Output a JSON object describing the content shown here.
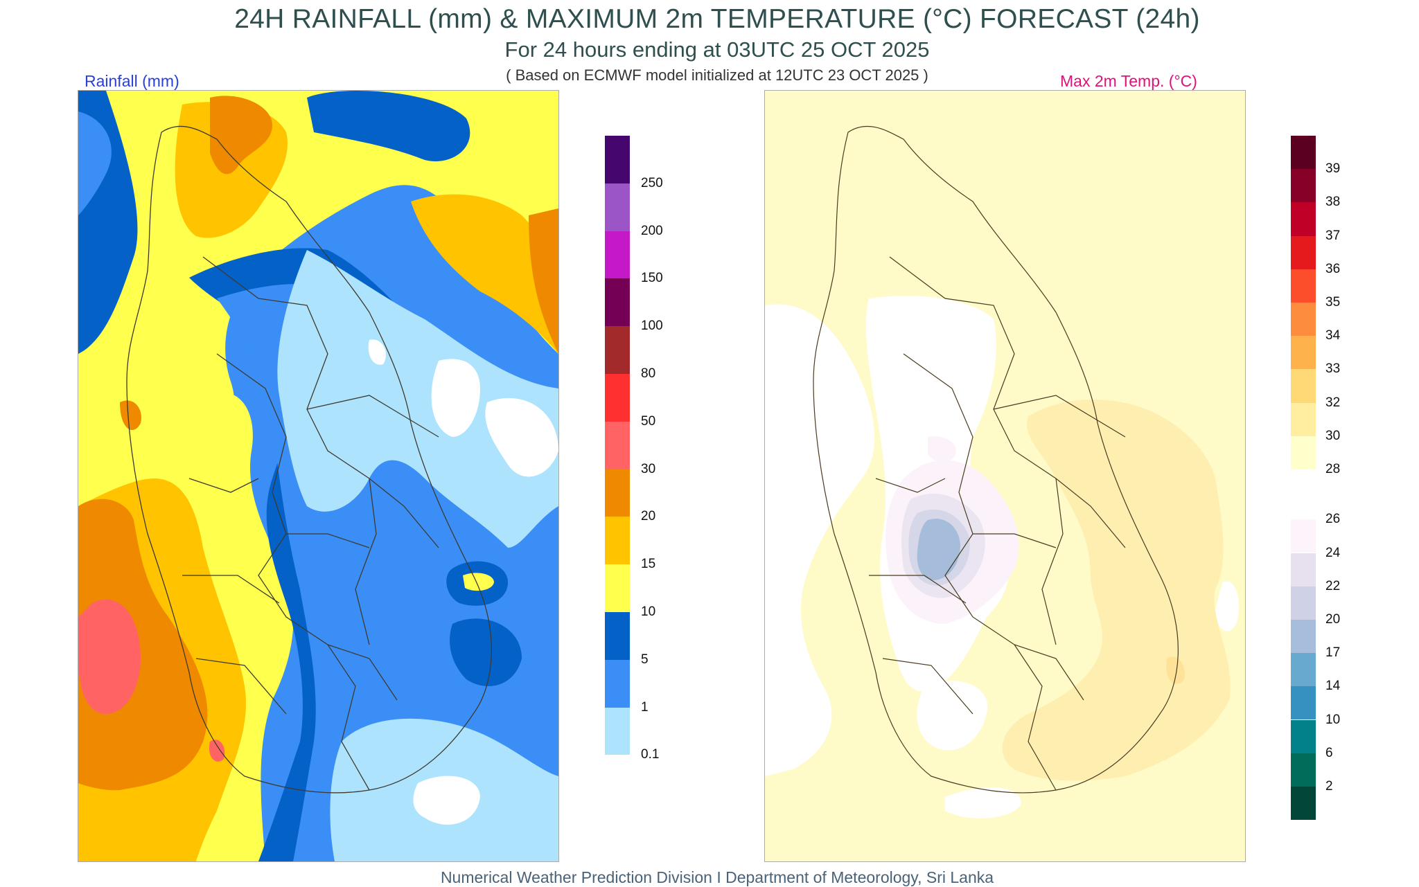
{
  "header": {
    "title": "24H RAINFALL (mm) & MAXIMUM 2m TEMPERATURE (°C) FORECAST (24h)",
    "subtitle": "For 24 hours ending at 03UTC 25 OCT 2025",
    "model_note": "( Based on ECMWF model initialized at 12UTC 23 OCT 2025 )"
  },
  "rain_panel": {
    "label": "Rainfall (mm)",
    "legend": {
      "labels": [
        "250",
        "200",
        "150",
        "100",
        "80",
        "50",
        "30",
        "20",
        "15",
        "10",
        "5",
        "1",
        "0.1"
      ],
      "colors": [
        "#45066e",
        "#9b55c6",
        "#c518c6",
        "#740055",
        "#a32a2a",
        "#ff3030",
        "#ff6363",
        "#ef8a00",
        "#ffc300",
        "#ffff4d",
        "#0461c8",
        "#3a8ef5",
        "#ade3fd"
      ]
    },
    "colors": {
      "very_light": "#ade3fd",
      "light_blue": "#3a8ef5",
      "dark_blue": "#0461c8",
      "yellow": "#ffff4d",
      "gold": "#ffc300",
      "orange": "#ef8a00",
      "pink": "#ff6363",
      "none": "#ffffff"
    }
  },
  "temp_panel": {
    "label": "Max 2m Temp. (°C)",
    "legend": {
      "labels": [
        "39",
        "38",
        "37",
        "36",
        "35",
        "34",
        "33",
        "32",
        "30",
        "28",
        "26",
        "24",
        "22",
        "20",
        "17",
        "14",
        "10",
        "6",
        "2"
      ],
      "colors": [
        "#5b0020",
        "#860028",
        "#c00027",
        "#e41a1c",
        "#fc4e2a",
        "#fd8d3c",
        "#feb24c",
        "#fed976",
        "#ffeda0",
        "#ffffcc",
        "#ffffff",
        "#fdf3fb",
        "#e7e1ef",
        "#cfd1e6",
        "#a6bddb",
        "#67a9cf",
        "#3690c0",
        "#02818a",
        "#016c59",
        "#014636"
      ]
    },
    "colors": {
      "c28_30": "#fefbc9",
      "c30_32": "#feeeb0",
      "c32_33": "#fde298",
      "c26_28": "#ffffff",
      "c24_26": "#fcf3fa",
      "c22_24": "#ebe5f1",
      "c20_22": "#d6d6e9",
      "c17_20": "#a5bddb"
    }
  },
  "footer": "Numerical Weather Prediction Division I Department of Meteorology, Sri Lanka"
}
